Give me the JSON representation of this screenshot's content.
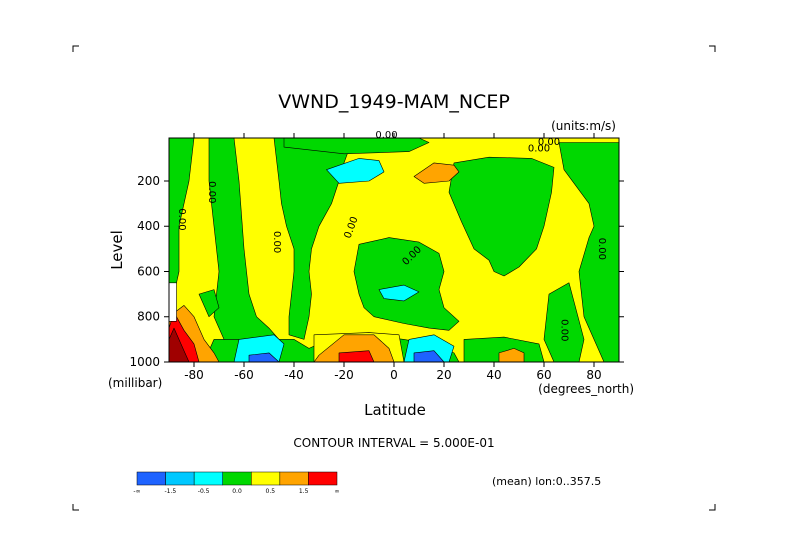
{
  "chart_data": {
    "type": "heatmap",
    "title": "VWND_1949-MAM_NCEP",
    "units_label": "(units:m/s)",
    "xlabel": "Latitude",
    "x_units": "(degrees_north)",
    "ylabel": "Level",
    "y_units": "(millibar)",
    "xlim": [
      -90,
      90
    ],
    "ylim": [
      1000,
      10
    ],
    "y_inverted": true,
    "x_ticks": [
      -80,
      -60,
      -40,
      -20,
      0,
      20,
      40,
      60,
      80
    ],
    "y_ticks": [
      200,
      400,
      600,
      800,
      1000
    ],
    "contour_interval_text": "CONTOUR INTERVAL = 5.000E-01",
    "footer_text": "(mean) lon:0..357.5",
    "contour_labels": [
      "0.00"
    ],
    "colorbar": {
      "colors": [
        "#1e63ff",
        "#00c8ff",
        "#00ffff",
        "#00d800",
        "#ffff00",
        "#ffa400",
        "#ff0000"
      ],
      "labels": [
        "-∞",
        "-1.5",
        "-0.5",
        "0.0",
        "0.5",
        "1.5",
        "∞"
      ]
    },
    "field": {
      "base": "yellow",
      "regions": [
        {
          "id": "green-southpolar",
          "level": "green",
          "polygon": [
            [
              -90,
              10
            ],
            [
              -80,
              10
            ],
            [
              -82,
              200
            ],
            [
              -86,
              400
            ],
            [
              -86,
              600
            ],
            [
              -88,
              700
            ],
            [
              -90,
              750
            ]
          ]
        },
        {
          "id": "green-south-mid",
          "level": "green",
          "polygon": [
            [
              -74,
              10
            ],
            [
              -64,
              10
            ],
            [
              -62,
              200
            ],
            [
              -60,
              500
            ],
            [
              -58,
              700
            ],
            [
              -55,
              800
            ],
            [
              -50,
              850
            ],
            [
              -46,
              900
            ],
            [
              -60,
              920
            ],
            [
              -68,
              900
            ],
            [
              -72,
              800
            ],
            [
              -70,
              600
            ],
            [
              -72,
              400
            ],
            [
              -74,
              200
            ]
          ]
        },
        {
          "id": "green-large-south",
          "level": "green",
          "polygon": [
            [
              -48,
              10
            ],
            [
              -30,
              10
            ],
            [
              -18,
              60
            ],
            [
              -20,
              120
            ],
            [
              -22,
              200
            ],
            [
              -25,
              300
            ],
            [
              -30,
              400
            ],
            [
              -33,
              500
            ],
            [
              -34,
              600
            ],
            [
              -33,
              700
            ],
            [
              -34,
              800
            ],
            [
              -36,
              900
            ],
            [
              -42,
              880
            ],
            [
              -42,
              800
            ],
            [
              -41,
              700
            ],
            [
              -40,
              600
            ],
            [
              -40,
              500
            ],
            [
              -43,
              400
            ],
            [
              -45,
              300
            ],
            [
              -46,
              200
            ]
          ]
        },
        {
          "id": "green-nearstrip",
          "level": "green",
          "polygon": [
            [
              -44,
              10
            ],
            [
              10,
              10
            ],
            [
              14,
              30
            ],
            [
              6,
              70
            ],
            [
              -20,
              80
            ],
            [
              -44,
              50
            ]
          ]
        },
        {
          "id": "green-tropical-mid",
          "level": "green",
          "polygon": [
            [
              -14,
              480
            ],
            [
              -2,
              450
            ],
            [
              10,
              470
            ],
            [
              18,
              520
            ],
            [
              20,
              600
            ],
            [
              18,
              680
            ],
            [
              20,
              760
            ],
            [
              26,
              820
            ],
            [
              22,
              860
            ],
            [
              14,
              850
            ],
            [
              4,
              830
            ],
            [
              -8,
              800
            ],
            [
              -12,
              760
            ],
            [
              -14,
              700
            ],
            [
              -16,
              600
            ]
          ]
        },
        {
          "id": "green-north-big",
          "level": "green",
          "polygon": [
            [
              24,
              120
            ],
            [
              38,
              95
            ],
            [
              55,
              100
            ],
            [
              64,
              140
            ],
            [
              63,
              250
            ],
            [
              60,
              400
            ],
            [
              57,
              500
            ],
            [
              50,
              580
            ],
            [
              44,
              620
            ],
            [
              40,
              600
            ],
            [
              38,
              550
            ],
            [
              32,
              500
            ],
            [
              27,
              380
            ],
            [
              22,
              250
            ]
          ]
        },
        {
          "id": "green-north-polar",
          "level": "green",
          "polygon": [
            [
              66,
              30
            ],
            [
              90,
              30
            ],
            [
              90,
              1000
            ],
            [
              84,
              1000
            ],
            [
              80,
              900
            ],
            [
              76,
              800
            ],
            [
              74,
              600
            ],
            [
              78,
              450
            ],
            [
              80,
              400
            ],
            [
              78,
              300
            ],
            [
              68,
              150
            ]
          ]
        },
        {
          "id": "green-north-near",
          "level": "green",
          "polygon": [
            [
              62,
              700
            ],
            [
              70,
              650
            ],
            [
              76,
              900
            ],
            [
              74,
              1000
            ],
            [
              64,
              1000
            ],
            [
              60,
              900
            ]
          ]
        },
        {
          "id": "green-bottom-mid",
          "level": "green",
          "polygon": [
            [
              -72,
              900
            ],
            [
              -40,
              900
            ],
            [
              -34,
              940
            ],
            [
              -26,
              900
            ],
            [
              -10,
              880
            ],
            [
              4,
              900
            ],
            [
              14,
              920
            ],
            [
              24,
              960
            ],
            [
              26,
              1000
            ],
            [
              -76,
              1000
            ]
          ]
        },
        {
          "id": "yellow-lower-band",
          "level": "yellow",
          "polygon": [
            [
              -32,
              880
            ],
            [
              -10,
              870
            ],
            [
              2,
              880
            ],
            [
              4,
              1000
            ],
            [
              -32,
              1000
            ]
          ]
        },
        {
          "id": "green-right-bottom",
          "level": "green",
          "polygon": [
            [
              28,
              900
            ],
            [
              44,
              890
            ],
            [
              58,
              920
            ],
            [
              60,
              1000
            ],
            [
              28,
              1000
            ]
          ]
        },
        {
          "id": "cyan-upper-tropic",
          "level": "cyan",
          "polygon": [
            [
              -27,
              150
            ],
            [
              -14,
              100
            ],
            [
              -6,
              110
            ],
            [
              -4,
              160
            ],
            [
              -10,
              200
            ],
            [
              -22,
              210
            ]
          ]
        },
        {
          "id": "cyan-mid",
          "level": "cyan",
          "polygon": [
            [
              -6,
              680
            ],
            [
              4,
              660
            ],
            [
              10,
              690
            ],
            [
              4,
              730
            ],
            [
              -4,
              720
            ]
          ]
        },
        {
          "id": "cyan-south-bottom",
          "level": "cyan",
          "polygon": [
            [
              -62,
              900
            ],
            [
              -48,
              880
            ],
            [
              -44,
              920
            ],
            [
              -46,
              1000
            ],
            [
              -64,
              1000
            ]
          ]
        },
        {
          "id": "cyan-north-bottom",
          "level": "cyan",
          "polygon": [
            [
              6,
              900
            ],
            [
              16,
              880
            ],
            [
              24,
              930
            ],
            [
              22,
              1000
            ],
            [
              4,
              1000
            ]
          ]
        },
        {
          "id": "blue-south-bottom",
          "level": "blue",
          "polygon": [
            [
              -58,
              970
            ],
            [
              -50,
              960
            ],
            [
              -46,
              1000
            ],
            [
              -58,
              1000
            ]
          ]
        },
        {
          "id": "blue-north-bottom",
          "level": "blue",
          "polygon": [
            [
              8,
              960
            ],
            [
              16,
              950
            ],
            [
              20,
              1000
            ],
            [
              8,
              1000
            ]
          ]
        },
        {
          "id": "orange-north-upper",
          "level": "orange",
          "polygon": [
            [
              8,
              180
            ],
            [
              16,
              120
            ],
            [
              24,
              130
            ],
            [
              26,
              160
            ],
            [
              22,
              200
            ],
            [
              12,
              210
            ]
          ]
        },
        {
          "id": "orange-tropic-low",
          "level": "orange",
          "polygon": [
            [
              -30,
              970
            ],
            [
              -20,
              880
            ],
            [
              -8,
              880
            ],
            [
              -2,
              940
            ],
            [
              0,
              1000
            ],
            [
              -32,
              1000
            ]
          ]
        },
        {
          "id": "red-tropic-low",
          "level": "red",
          "polygon": [
            [
              -22,
              960
            ],
            [
              -10,
              950
            ],
            [
              -8,
              1000
            ],
            [
              -22,
              1000
            ]
          ]
        },
        {
          "id": "orange-north-low",
          "level": "orange",
          "polygon": [
            [
              42,
              960
            ],
            [
              48,
              940
            ],
            [
              52,
              960
            ],
            [
              52,
              1000
            ],
            [
              42,
              1000
            ]
          ]
        },
        {
          "id": "orange-south-pole",
          "level": "orange",
          "polygon": [
            [
              -90,
              800
            ],
            [
              -84,
              750
            ],
            [
              -80,
              800
            ],
            [
              -76,
              900
            ],
            [
              -72,
              960
            ],
            [
              -70,
              1000
            ],
            [
              -90,
              1000
            ]
          ]
        },
        {
          "id": "red-south-pole",
          "level": "red",
          "polygon": [
            [
              -90,
              850
            ],
            [
              -88,
              780
            ],
            [
              -84,
              860
            ],
            [
              -80,
              920
            ],
            [
              -78,
              1000
            ],
            [
              -90,
              1000
            ]
          ]
        },
        {
          "id": "darkred-south-pole",
          "level": "darkred",
          "polygon": [
            [
              -90,
              900
            ],
            [
              -88,
              850
            ],
            [
              -84,
              950
            ],
            [
              -82,
              1000
            ],
            [
              -90,
              1000
            ]
          ]
        },
        {
          "id": "white-mask",
          "level": "white",
          "polygon": [
            [
              -90,
              650
            ],
            [
              -87,
              650
            ],
            [
              -87,
              820
            ],
            [
              -90,
              820
            ]
          ]
        },
        {
          "id": "green-south-lower",
          "level": "green",
          "polygon": [
            [
              -78,
              700
            ],
            [
              -72,
              680
            ],
            [
              -70,
              760
            ],
            [
              -74,
              800
            ]
          ]
        }
      ],
      "level_colors": {
        "blue": "#1e63ff",
        "cyan": "#00ffff",
        "green": "#00d800",
        "yellow": "#ffff00",
        "orange": "#ffa400",
        "red": "#ff0000",
        "darkred": "#a00000",
        "white": "#ffffff"
      }
    }
  }
}
